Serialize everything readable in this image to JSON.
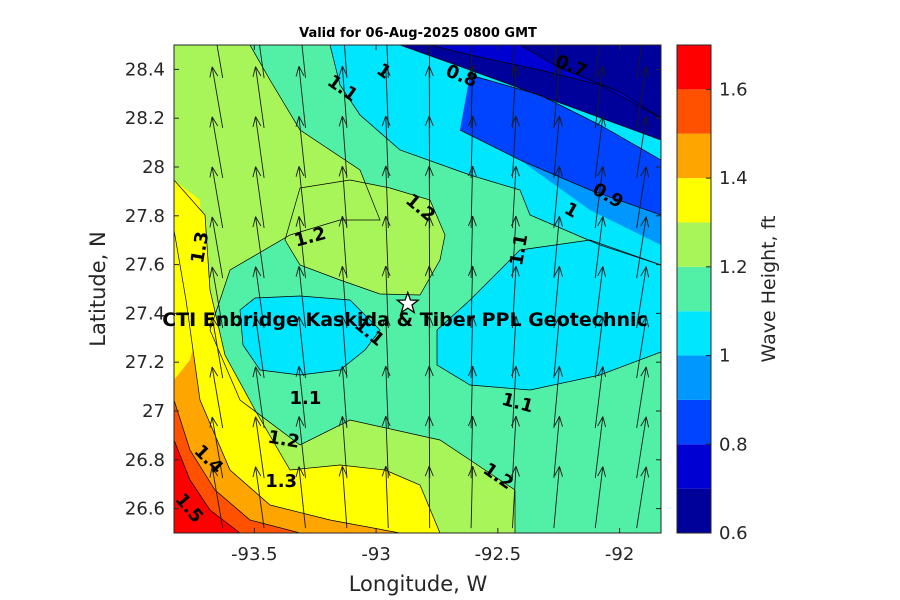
{
  "chart_data": {
    "type": "contour",
    "title": "Valid for 06-Aug-2025 0800 GMT",
    "xlabel": "Longitude, W",
    "ylabel": "Latitude, N",
    "colorbar_label": "Wave Height, ft",
    "xlim": [
      -93.83,
      -91.83
    ],
    "ylim": [
      26.5,
      28.5
    ],
    "xticks": [
      -93.5,
      -93,
      -92.5,
      -92
    ],
    "xtick_labels": [
      "-93.5",
      "-93",
      "-92.5",
      "-92"
    ],
    "yticks": [
      26.6,
      26.8,
      27,
      27.2,
      27.4,
      27.6,
      27.8,
      28,
      28.2,
      28.4
    ],
    "ytick_labels": [
      "26.6",
      "26.8",
      "27",
      "27.2",
      "27.4",
      "27.6",
      "27.8",
      "28",
      "28.2",
      "28.4"
    ],
    "colorbar": {
      "range": [
        0.6,
        1.7
      ],
      "levels": [
        0.6,
        0.7,
        0.8,
        0.9,
        1.0,
        1.1,
        1.2,
        1.3,
        1.4,
        1.5,
        1.6,
        1.7
      ],
      "colors": [
        "#00009b",
        "#0000d2",
        "#0044ff",
        "#0098ff",
        "#00e6ff",
        "#52f0a6",
        "#a8f55a",
        "#ffff00",
        "#ffa500",
        "#ff5100",
        "#ff0000"
      ],
      "ticks": [
        0.6,
        0.8,
        1,
        1.2,
        1.4,
        1.6
      ],
      "tick_labels": [
        "0.6",
        "0.8",
        "1",
        "1.2",
        "1.4",
        "1.6"
      ]
    },
    "contour_labels": [
      {
        "text": "0.7",
        "lon": -92.2,
        "lat": 28.41,
        "angle": 22
      },
      {
        "text": "0.8",
        "lon": -92.65,
        "lat": 28.37,
        "angle": 22
      },
      {
        "text": "1",
        "lon": -92.97,
        "lat": 28.39,
        "angle": 35
      },
      {
        "text": "1.1",
        "lon": -93.14,
        "lat": 28.32,
        "angle": 35
      },
      {
        "text": "0.9",
        "lon": -92.05,
        "lat": 27.88,
        "angle": 30
      },
      {
        "text": "1",
        "lon": -92.2,
        "lat": 27.82,
        "angle": 30
      },
      {
        "text": "1.2",
        "lon": -92.82,
        "lat": 27.83,
        "angle": 40
      },
      {
        "text": "1.2",
        "lon": -93.27,
        "lat": 27.71,
        "angle": -15
      },
      {
        "text": "1.3",
        "lon": -93.72,
        "lat": 27.67,
        "angle": -80
      },
      {
        "text": "1.1",
        "lon": -92.41,
        "lat": 27.66,
        "angle": -80
      },
      {
        "text": "1.1",
        "lon": -93.03,
        "lat": 27.32,
        "angle": 40
      },
      {
        "text": "1.1",
        "lon": -93.29,
        "lat": 27.05,
        "angle": 0
      },
      {
        "text": "1.1",
        "lon": -92.42,
        "lat": 27.03,
        "angle": 15
      },
      {
        "text": "1.2",
        "lon": -93.38,
        "lat": 26.88,
        "angle": 10
      },
      {
        "text": "1.2",
        "lon": -92.5,
        "lat": 26.73,
        "angle": 35
      },
      {
        "text": "1.3",
        "lon": -93.39,
        "lat": 26.71,
        "angle": 0
      },
      {
        "text": "1.4",
        "lon": -93.69,
        "lat": 26.8,
        "angle": 45
      },
      {
        "text": "1.5",
        "lon": -93.77,
        "lat": 26.6,
        "angle": 50
      }
    ],
    "site": {
      "name": "CTI Enbridge  Kaskida & Tiber PPL Geotechnic",
      "lon": -92.87,
      "lat": 27.44
    },
    "vector_field": {
      "description": "wave direction arrows, pointing roughly north",
      "spacing_lon": 0.17,
      "spacing_lat": 0.205
    }
  }
}
